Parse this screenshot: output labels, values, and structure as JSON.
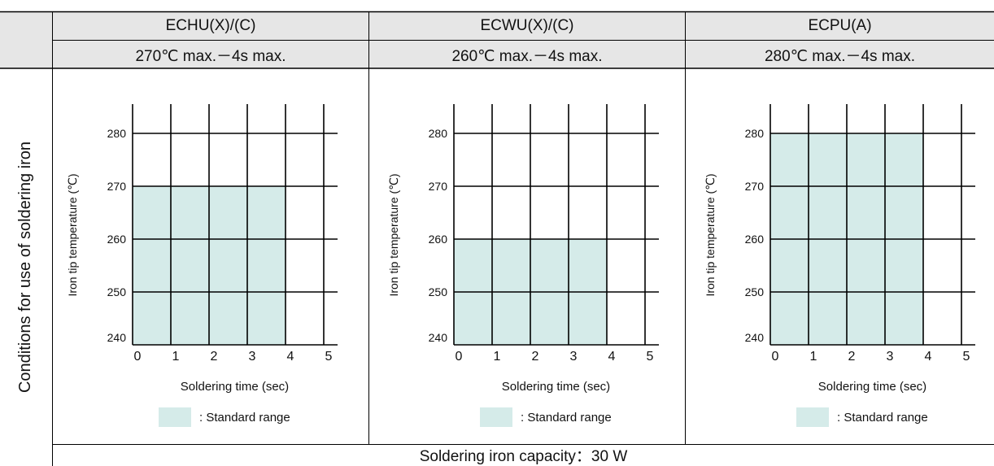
{
  "header": {
    "columns": [
      {
        "name": "ECHU(X)/(C)",
        "condition": "270℃ max.－4s max."
      },
      {
        "name": "ECWU(X)/(C)",
        "condition": "260℃ max.－4s max."
      },
      {
        "name": "ECPU(A)",
        "condition": "280℃ max.－4s max."
      }
    ]
  },
  "side_label": "Conditions for use of soldering iron",
  "footer": "Soldering iron capacity：30 W",
  "colors": {
    "standard_range": "#d5ebe9",
    "grid": "#000000"
  },
  "chart_data": [
    {
      "type": "area",
      "xlabel": "Soldering time (sec)",
      "ylabel": "Iron tip temperature (℃)",
      "x_ticks": [
        0,
        1,
        2,
        3,
        4,
        5
      ],
      "y_ticks": [
        240,
        250,
        260,
        270,
        280
      ],
      "xlim": [
        0,
        5
      ],
      "ylim": [
        240,
        280
      ],
      "standard_range": {
        "time_max": 4,
        "temp_max": 270
      },
      "legend": ": Standard range"
    },
    {
      "type": "area",
      "xlabel": "Soldering time (sec)",
      "ylabel": "Iron tip temperature (℃)",
      "x_ticks": [
        0,
        1,
        2,
        3,
        4,
        5
      ],
      "y_ticks": [
        240,
        250,
        260,
        270,
        280
      ],
      "xlim": [
        0,
        5
      ],
      "ylim": [
        240,
        280
      ],
      "standard_range": {
        "time_max": 4,
        "temp_max": 260
      },
      "legend": ": Standard range"
    },
    {
      "type": "area",
      "xlabel": "Soldering time (sec)",
      "ylabel": "Iron tip temperature (℃)",
      "x_ticks": [
        0,
        1,
        2,
        3,
        4,
        5
      ],
      "y_ticks": [
        240,
        250,
        260,
        270,
        280
      ],
      "xlim": [
        0,
        5
      ],
      "ylim": [
        240,
        280
      ],
      "standard_range": {
        "time_max": 4,
        "temp_max": 280
      },
      "legend": ": Standard range"
    }
  ]
}
